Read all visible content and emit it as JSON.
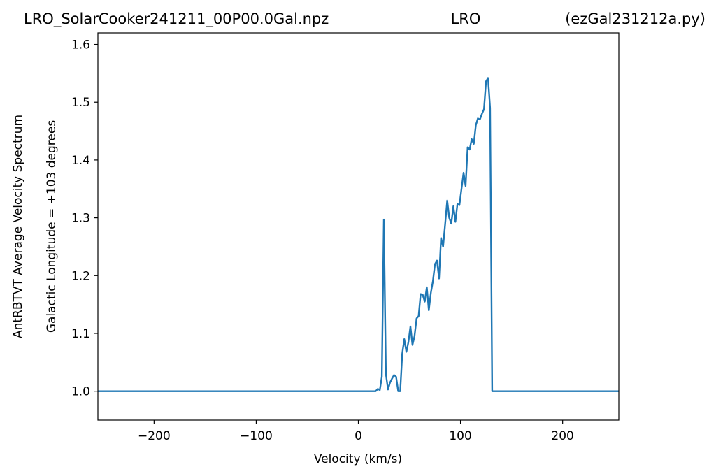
{
  "chart_data": {
    "type": "line",
    "title_left": "LRO_SolarCooker241211_00P00.0Gal.npz",
    "title_center": "LRO",
    "title_right": "(ezGal231212a.py)",
    "xlabel": "Velocity (km/s)",
    "ylabel_line1": "AntRBTVT Average Velocity Spectrum",
    "ylabel_line2": "Galactic Longitude = +103 degrees",
    "xlim": [
      -255,
      255
    ],
    "ylim": [
      0.95,
      1.62
    ],
    "x_ticks": [
      -200,
      -100,
      0,
      100,
      200
    ],
    "x_tick_labels": [
      "−200",
      "−100",
      "0",
      "100",
      "200"
    ],
    "y_ticks": [
      1.0,
      1.1,
      1.2,
      1.3,
      1.4,
      1.5,
      1.6
    ],
    "y_tick_labels": [
      "1.0",
      "1.1",
      "1.2",
      "1.3",
      "1.4",
      "1.5",
      "1.6"
    ],
    "grid": false,
    "series": [
      {
        "color": "#1f77b4",
        "x": [
          -255,
          17,
          19,
          21,
          23,
          25,
          27,
          29,
          31,
          33,
          35,
          37,
          39,
          41,
          43,
          45,
          47,
          49,
          51,
          53,
          55,
          57,
          59,
          61,
          63,
          65,
          67,
          69,
          71,
          73,
          75,
          77,
          79,
          81,
          83,
          85,
          87,
          89,
          91,
          93,
          95,
          97,
          99,
          101,
          103,
          105,
          107,
          109,
          111,
          113,
          115,
          117,
          119,
          121,
          123,
          125,
          127,
          129,
          131,
          255
        ],
        "y": [
          1.0,
          1.0,
          1.004,
          1.002,
          1.025,
          1.297,
          1.03,
          1.003,
          1.015,
          1.022,
          1.028,
          1.025,
          1.0,
          1.0,
          1.065,
          1.09,
          1.068,
          1.085,
          1.112,
          1.08,
          1.095,
          1.126,
          1.13,
          1.168,
          1.167,
          1.155,
          1.18,
          1.14,
          1.17,
          1.19,
          1.22,
          1.226,
          1.195,
          1.265,
          1.25,
          1.29,
          1.33,
          1.3,
          1.29,
          1.32,
          1.293,
          1.324,
          1.322,
          1.35,
          1.378,
          1.355,
          1.422,
          1.418,
          1.436,
          1.428,
          1.46,
          1.472,
          1.47,
          1.48,
          1.488,
          1.536,
          1.542,
          1.49,
          1.0,
          1.0
        ]
      }
    ]
  }
}
